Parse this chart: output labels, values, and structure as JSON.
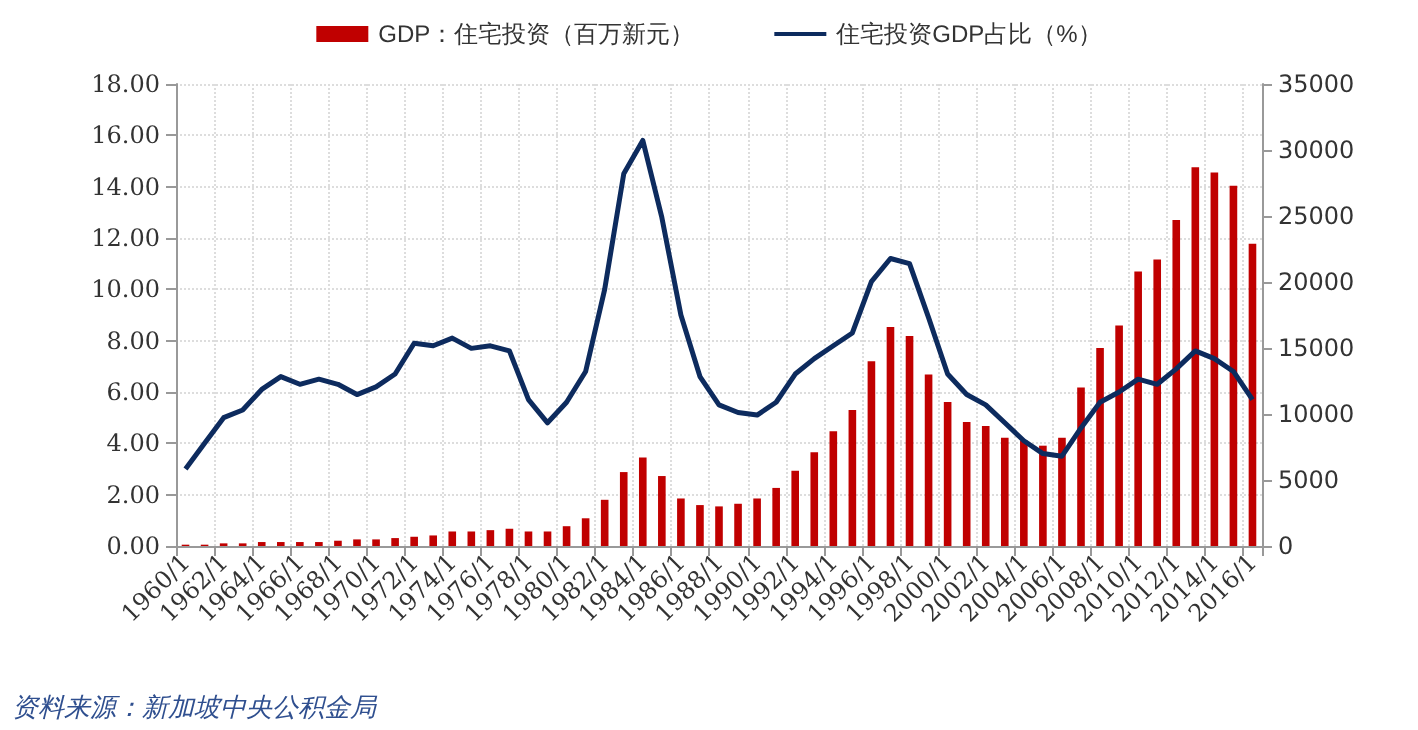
{
  "chart_data": {
    "type": "bar",
    "categories": [
      "1960/1",
      null,
      "1962/1",
      null,
      "1964/1",
      null,
      "1966/1",
      null,
      "1968/1",
      null,
      "1970/1",
      null,
      "1972/1",
      null,
      "1974/1",
      null,
      "1976/1",
      null,
      "1978/1",
      null,
      "1980/1",
      null,
      "1982/1",
      null,
      "1984/1",
      null,
      "1986/1",
      null,
      "1988/1",
      null,
      "1990/1",
      null,
      "1992/1",
      null,
      "1994/1",
      null,
      "1996/1",
      null,
      "1998/1",
      null,
      "2000/1",
      null,
      "2002/1",
      null,
      "2004/1",
      null,
      "2006/1",
      null,
      "2008/1",
      null,
      "2010/1",
      null,
      "2012/1",
      null,
      "2014/1",
      null,
      "2016/1"
    ],
    "series": [
      {
        "name": "GDP：住宅投资（百万新元）",
        "axis": "y2",
        "color": "#c00000",
        "values": [
          100,
          100,
          200,
          200,
          300,
          300,
          300,
          300,
          400,
          500,
          500,
          600,
          700,
          800,
          1100,
          1100,
          1200,
          1300,
          1100,
          1100,
          1500,
          2100,
          3500,
          5600,
          6700,
          5300,
          3600,
          3100,
          3000,
          3200,
          3600,
          4400,
          5700,
          7100,
          8700,
          10300,
          14000,
          16600,
          15900,
          13000,
          10900,
          9400,
          9100,
          8200,
          8000,
          7600,
          8200,
          12000,
          15000,
          16700,
          20800,
          21700,
          24700,
          28700,
          28300,
          27300,
          22900
        ]
      },
      {
        "name": "住宅投资GDP占比（%）",
        "type": "line",
        "axis": "y",
        "color": "#0d2b5e",
        "values": [
          3.0,
          4.0,
          5.0,
          5.3,
          6.1,
          6.6,
          6.3,
          6.5,
          6.3,
          5.9,
          6.2,
          6.7,
          7.9,
          7.8,
          8.1,
          7.7,
          7.8,
          7.6,
          5.7,
          4.8,
          5.6,
          6.8,
          10.0,
          14.5,
          15.8,
          12.8,
          9.0,
          6.6,
          5.5,
          5.2,
          5.1,
          5.6,
          6.7,
          7.3,
          7.8,
          8.3,
          10.3,
          11.2,
          11.0,
          8.9,
          6.7,
          5.9,
          5.5,
          4.8,
          4.1,
          3.6,
          3.5,
          4.6,
          5.6,
          6.0,
          6.5,
          6.3,
          6.9,
          7.6,
          7.3,
          6.8,
          5.7
        ]
      }
    ],
    "ylim": [
      0,
      18
    ],
    "yticks": [
      {
        "value": 0,
        "label": "0.00"
      },
      {
        "value": 2,
        "label": "2.00"
      },
      {
        "value": 4,
        "label": "4.00"
      },
      {
        "value": 6,
        "label": "6.00"
      },
      {
        "value": 8,
        "label": "8.00"
      },
      {
        "value": 10,
        "label": "10.00"
      },
      {
        "value": 12,
        "label": "12.00"
      },
      {
        "value": 14,
        "label": "14.00"
      },
      {
        "value": 16,
        "label": "16.00"
      },
      {
        "value": 18,
        "label": "18.00"
      }
    ],
    "y2lim": [
      0,
      35000
    ],
    "y2ticks": [
      0,
      5000,
      10000,
      15000,
      20000,
      25000,
      30000,
      35000
    ],
    "grid": true,
    "legend": "top",
    "marker": "none",
    "annotations": [
      "资料来源：新加坡中央公积金局"
    ]
  }
}
